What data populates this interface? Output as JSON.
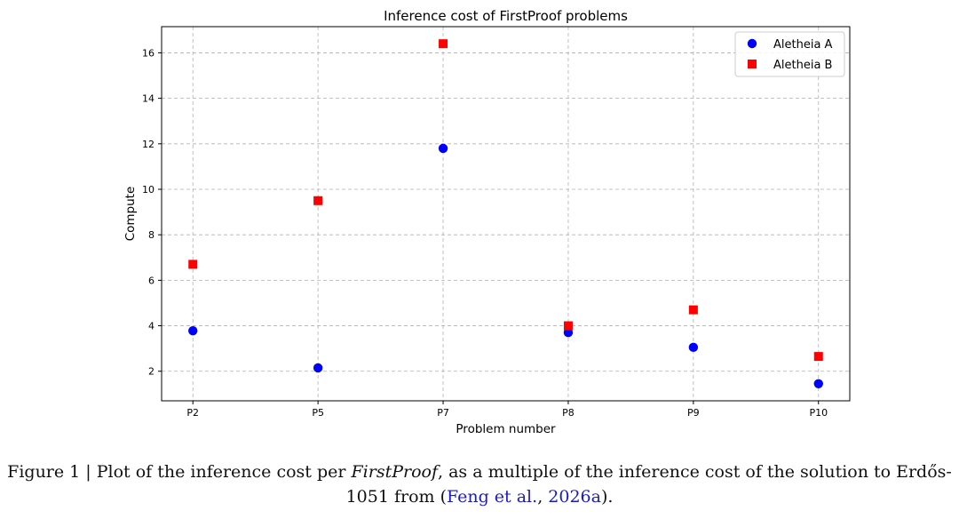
{
  "chart_data": {
    "type": "scatter",
    "title": "Inference cost of FirstProof problems",
    "xlabel": "Problem number",
    "ylabel": "Compute",
    "categories": [
      "P2",
      "P5",
      "P7",
      "P8",
      "P9",
      "P10"
    ],
    "yticks": [
      2,
      4,
      6,
      8,
      10,
      12,
      14,
      16
    ],
    "ylim": [
      0.7,
      17.15
    ],
    "grid": true,
    "legend_position": "top-right",
    "series": [
      {
        "name": "Aletheia A",
        "marker": "circle",
        "color": "#0000ff",
        "values": [
          3.78,
          2.15,
          11.8,
          3.7,
          3.05,
          1.45
        ]
      },
      {
        "name": "Aletheia B",
        "marker": "square",
        "color": "#ff0000",
        "values": [
          6.7,
          9.5,
          16.4,
          4.0,
          4.7,
          2.65
        ]
      }
    ]
  },
  "caption": {
    "prefix": "Figure 1 | Plot of the inference cost per ",
    "emph": "FirstProof",
    "middle": ", as a multiple of the inference cost of the solution to Erdős-1051 from (",
    "link1": "Feng et al.",
    "sep": ", ",
    "link2": "2026a",
    "suffix": ")."
  }
}
